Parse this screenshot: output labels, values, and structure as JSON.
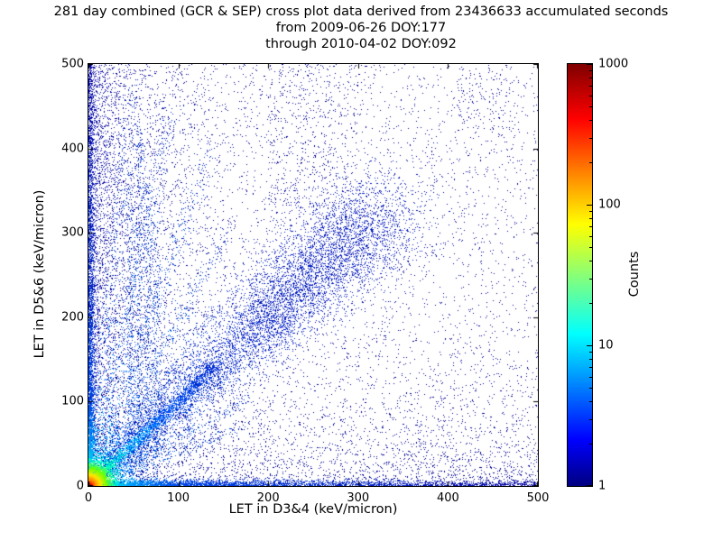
{
  "chart_data": {
    "type": "heatmap",
    "title": "281 day combined (GCR & SEP) cross plot data derived from 23436633 accumulated seconds",
    "subtitle_from": "from 2009-06-26 DOY:177",
    "subtitle_through": "through 2010-04-02 DOY:092",
    "xlabel": "LET in D3&4 (keV/micron)",
    "ylabel": "LET in D5&6 (keV/micron)",
    "xlim": [
      0,
      500
    ],
    "ylim": [
      0,
      500
    ],
    "xticks": [
      0,
      100,
      200,
      300,
      400,
      500
    ],
    "yticks": [
      0,
      100,
      200,
      300,
      400,
      500
    ],
    "colormap": "jet",
    "colorbar": {
      "label": "Counts",
      "scale": "log",
      "min": 1,
      "max": 1000,
      "ticks": [
        1000,
        100,
        10,
        1
      ]
    },
    "colorbar_gradient": [
      [
        0,
        "#7f0000"
      ],
      [
        0.13,
        "#ff0000"
      ],
      [
        0.38,
        "#ffff00"
      ],
      [
        0.64,
        "#00ffff"
      ],
      [
        0.89,
        "#0000ff"
      ],
      [
        1,
        "#000080"
      ]
    ],
    "features": [
      {
        "name": "background-uniform",
        "type": "scatter",
        "count": 4200,
        "x": {
          "dist": "uniform",
          "a": 0,
          "b": 500
        },
        "y": {
          "dist": "uniform",
          "a": 0,
          "b": 500
        },
        "color": "#000091"
      },
      {
        "name": "background-left",
        "type": "scatter",
        "count": 3000,
        "x": {
          "dist": "exp",
          "scale": 60,
          "max": 500
        },
        "y": {
          "dist": "uniform",
          "a": 0,
          "b": 500
        },
        "color": "#000091"
      },
      {
        "name": "background-bottom",
        "type": "scatter",
        "count": 2200,
        "x": {
          "dist": "uniform",
          "a": 0,
          "b": 500
        },
        "y": {
          "dist": "exp",
          "scale": 55,
          "max": 500
        },
        "color": "#000091"
      },
      {
        "name": "background-left-dense",
        "type": "scatter",
        "count": 1600,
        "x": {
          "dist": "exp",
          "scale": 20,
          "max": 500
        },
        "y": {
          "dist": "uniform",
          "a": 0,
          "b": 500
        },
        "color": "#0000b4"
      },
      {
        "name": "cluster-top-middle",
        "type": "scatter",
        "count": 420,
        "x": {
          "dist": "uniform",
          "a": 200,
          "b": 300
        },
        "y": {
          "dist": "uniform",
          "a": 330,
          "b": 500
        },
        "color": "#000091"
      },
      {
        "name": "cluster-top-right",
        "type": "scatter",
        "count": 130,
        "x": {
          "dist": "uniform",
          "a": 410,
          "b": 470
        },
        "y": {
          "dist": "uniform",
          "a": 420,
          "b": 500
        },
        "color": "#000091"
      },
      {
        "name": "ray-84deg",
        "type": "ray",
        "angle": 84,
        "len": 480,
        "spread": 5,
        "count": 400,
        "stops": [
          [
            0,
            "#00d2ff"
          ],
          [
            0.25,
            "#0078ff"
          ],
          [
            1,
            "#0028c0"
          ]
        ]
      },
      {
        "name": "ray-78deg",
        "type": "ray",
        "angle": 78,
        "len": 460,
        "spread": 6,
        "count": 520,
        "stops": [
          [
            0,
            "#00d2ff"
          ],
          [
            0.25,
            "#0078ff"
          ],
          [
            1,
            "#0028c0"
          ]
        ]
      },
      {
        "name": "ray-71deg",
        "type": "ray",
        "angle": 71,
        "len": 420,
        "spread": 6,
        "count": 450,
        "stops": [
          [
            0,
            "#00d2ff"
          ],
          [
            0.25,
            "#0078ff"
          ],
          [
            1,
            "#0028c0"
          ]
        ]
      },
      {
        "name": "ray-63deg",
        "type": "ray",
        "angle": 63,
        "len": 340,
        "spread": 5,
        "count": 380,
        "stops": [
          [
            0,
            "#00d2ff"
          ],
          [
            0.25,
            "#0078ff"
          ],
          [
            1,
            "#0028c0"
          ]
        ]
      },
      {
        "name": "ray-56deg",
        "type": "ray",
        "angle": 56,
        "len": 260,
        "spread": 5,
        "count": 320,
        "stops": [
          [
            0,
            "#00d2ff"
          ],
          [
            0.25,
            "#0078ff"
          ],
          [
            1,
            "#0028c0"
          ]
        ]
      },
      {
        "name": "ray-40deg",
        "type": "ray",
        "angle": 40,
        "len": 230,
        "spread": 5,
        "count": 260,
        "stops": [
          [
            0,
            "#00d2ff"
          ],
          [
            0.25,
            "#0078ff"
          ],
          [
            1,
            "#0028c0"
          ]
        ]
      },
      {
        "name": "ray-30deg",
        "type": "ray",
        "angle": 30,
        "len": 210,
        "spread": 4,
        "count": 280,
        "stops": [
          [
            0,
            "#00d2ff"
          ],
          [
            0.25,
            "#0078ff"
          ],
          [
            1,
            "#0028c0"
          ]
        ]
      },
      {
        "name": "ray-22deg",
        "type": "ray",
        "angle": 22,
        "len": 190,
        "spread": 4,
        "count": 240,
        "stops": [
          [
            0,
            "#00d2ff"
          ],
          [
            0.25,
            "#0078ff"
          ],
          [
            1,
            "#0028c0"
          ]
        ]
      },
      {
        "name": "vertical-streak-47",
        "type": "vstreak",
        "x": 47,
        "len": 380,
        "sigma": 2,
        "count": 260,
        "color": "#0032c8"
      },
      {
        "name": "vertical-streak-57",
        "type": "vstreak",
        "x": 57,
        "len": 430,
        "sigma": 2.5,
        "count": 380,
        "color": "#0032c8"
      },
      {
        "name": "vertical-streak-66",
        "type": "vstreak",
        "x": 66,
        "len": 360,
        "sigma": 2.5,
        "count": 300,
        "color": "#0032c8"
      },
      {
        "name": "vertical-streak-75",
        "type": "vstreak",
        "x": 75,
        "len": 310,
        "sigma": 2.5,
        "count": 240,
        "color": "#0032c8"
      },
      {
        "name": "diagonal-cloud",
        "type": "diag",
        "count": 5200,
        "len": 330,
        "spread0": 5,
        "spread1": 38,
        "stops": [
          [
            0,
            "#0064ff"
          ],
          [
            0.2,
            "#0032dc"
          ],
          [
            1,
            "#0014b4"
          ]
        ]
      },
      {
        "name": "diagonal-cluster",
        "type": "diag",
        "count": 2200,
        "len": 330,
        "t0": 0.55,
        "t1": 1,
        "spread0": 5,
        "spread1": 30,
        "color": "#0018c0"
      },
      {
        "name": "y-axis-band",
        "type": "vband",
        "count": 3000,
        "sigma": 3.5,
        "mix": 0.45,
        "scale": 130,
        "stops": [
          [
            0,
            "#00e6b4"
          ],
          [
            0.07,
            "#00b4ff"
          ],
          [
            0.2,
            "#0046e6"
          ],
          [
            1,
            "#0000a0"
          ]
        ]
      },
      {
        "name": "x-axis-band",
        "type": "hband",
        "count": 3400,
        "sigma": 3.5,
        "mix": 0.45,
        "scale": 110,
        "stops": [
          [
            0,
            "#00e6b4"
          ],
          [
            0.07,
            "#00b4ff"
          ],
          [
            0.2,
            "#0046e6"
          ],
          [
            1,
            "#0000a0"
          ]
        ]
      },
      {
        "name": "diagonal-line",
        "type": "diag",
        "count": 1600,
        "len": 145,
        "spread0": 2.5,
        "spread1": 5,
        "stops": [
          [
            0,
            "#ffb400"
          ],
          [
            0.07,
            "#b4ff00"
          ],
          [
            0.16,
            "#00ffb4"
          ],
          [
            0.3,
            "#00c8ff"
          ],
          [
            0.55,
            "#0064ff"
          ],
          [
            1,
            "#0028d2"
          ]
        ]
      },
      {
        "name": "origin-hotspot",
        "type": "blob",
        "count": 4200,
        "scale": 14,
        "rnorm": 110,
        "stops": [
          [
            0,
            "#960000"
          ],
          [
            0.035,
            "#ff1e00"
          ],
          [
            0.07,
            "#ff8c00"
          ],
          [
            0.12,
            "#ffe600"
          ],
          [
            0.19,
            "#6eff00"
          ],
          [
            0.28,
            "#00ffc8"
          ],
          [
            0.42,
            "#0096ff"
          ],
          [
            0.65,
            "#0032dc"
          ],
          [
            1,
            "#0000b4"
          ]
        ]
      }
    ]
  }
}
